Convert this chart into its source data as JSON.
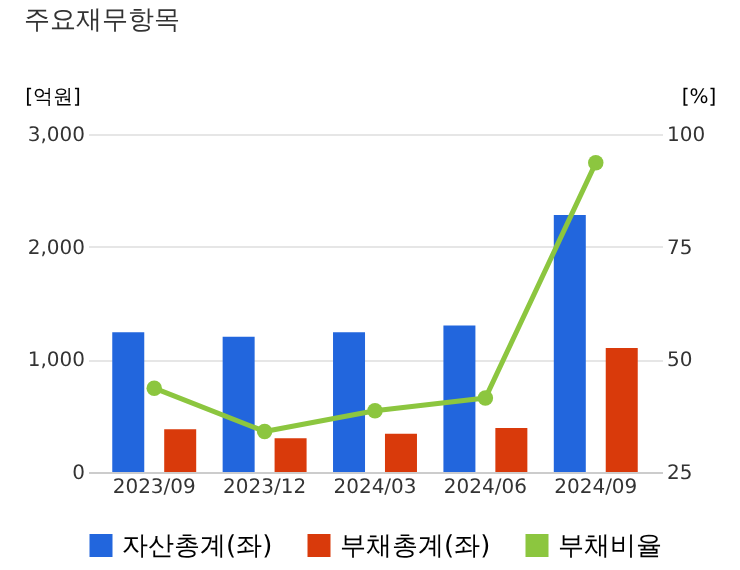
{
  "chart_data": {
    "type": "bar",
    "title": "주요재무항목",
    "ylabel": "[억원]",
    "y2label": "[%]",
    "categories": [
      "2023/09",
      "2023/12",
      "2024/03",
      "2024/06",
      "2024/09"
    ],
    "series": [
      {
        "name": "자산총계(좌)",
        "color": "#2266dd",
        "values": [
          1240,
          1200,
          1240,
          1300,
          2280
        ]
      },
      {
        "name": "부채총계(좌)",
        "color": "#d93a0b",
        "values": [
          380,
          300,
          340,
          390,
          1100
        ]
      },
      {
        "name": "부채비율",
        "type": "line",
        "axis": "y2",
        "color": "#8cc63f",
        "values": [
          43.6,
          34,
          38.6,
          41.4,
          93.6
        ]
      }
    ],
    "ylim": [
      0,
      3000
    ],
    "yticks": [
      0,
      {
        "value": 1000,
        "label": "1,000"
      },
      {
        "value": 2000,
        "label": "2,000"
      },
      {
        "value": 3000,
        "label": "3,000"
      }
    ],
    "y2lim": [
      25,
      100
    ],
    "y2ticks": [
      25,
      50,
      75,
      100
    ],
    "grid": "y",
    "legend": "bottom",
    "marker": "circle"
  }
}
